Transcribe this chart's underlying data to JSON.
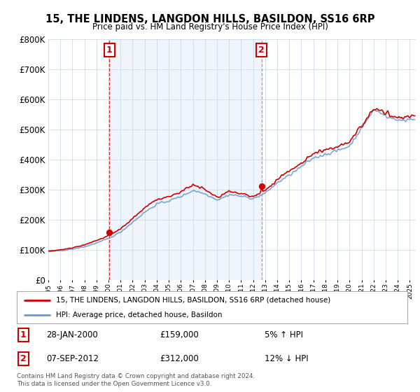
{
  "title": "15, THE LINDENS, LANGDON HILLS, BASILDON, SS16 6RP",
  "subtitle": "Price paid vs. HM Land Registry's House Price Index (HPI)",
  "legend_line1": "15, THE LINDENS, LANGDON HILLS, BASILDON, SS16 6RP (detached house)",
  "legend_line2": "HPI: Average price, detached house, Basildon",
  "annotation1_date": "28-JAN-2000",
  "annotation1_price": "£159,000",
  "annotation1_hpi": "5% ↑ HPI",
  "annotation2_date": "07-SEP-2012",
  "annotation2_price": "£312,000",
  "annotation2_hpi": "12% ↓ HPI",
  "footer": "Contains HM Land Registry data © Crown copyright and database right 2024.\nThis data is licensed under the Open Government Licence v3.0.",
  "sale1_year": 2000.07,
  "sale1_value": 159000,
  "sale2_year": 2012.69,
  "sale2_value": 312000,
  "red_color": "#cc0000",
  "blue_color": "#6699cc",
  "shade_color": "#ddeeff",
  "ylim_min": 0,
  "ylim_max": 800000,
  "xlim_min": 1995.0,
  "xlim_max": 2025.5,
  "background_plot": "#ffffff",
  "background_fig": "#ffffff",
  "hpi_base_values": [
    95000,
    98000,
    104000,
    112000,
    125000,
    140000,
    162000,
    195000,
    228000,
    255000,
    265000,
    280000,
    300000,
    288000,
    268000,
    285000,
    280000,
    272000,
    290000,
    325000,
    350000,
    378000,
    408000,
    420000,
    432000,
    448000,
    510000,
    565000,
    545000,
    530000,
    535000
  ],
  "red_base_values": [
    97000,
    101000,
    108000,
    118000,
    132000,
    148000,
    172000,
    205000,
    242000,
    268000,
    278000,
    294000,
    318000,
    302000,
    278000,
    296000,
    290000,
    280000,
    302000,
    340000,
    368000,
    395000,
    425000,
    438000,
    448000,
    462000,
    520000,
    575000,
    555000,
    540000,
    545000
  ],
  "hpi_years": [
    1995,
    1996,
    1997,
    1998,
    1999,
    2000,
    2001,
    2002,
    2003,
    2004,
    2005,
    2006,
    2007,
    2008,
    2009,
    2010,
    2011,
    2012,
    2013,
    2014,
    2015,
    2016,
    2017,
    2018,
    2019,
    2020,
    2021,
    2022,
    2023,
    2024,
    2025
  ]
}
